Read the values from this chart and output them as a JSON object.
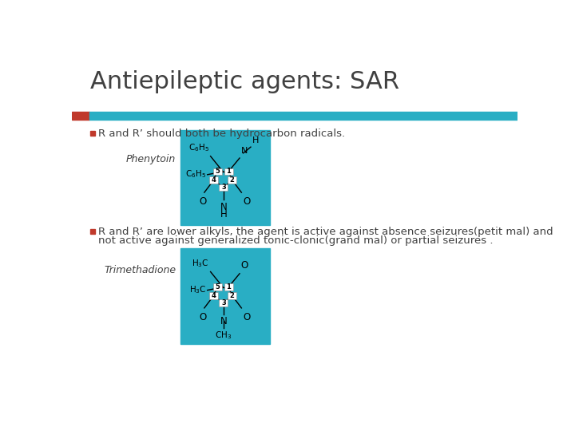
{
  "title": "Antiepileptic agents: SAR",
  "title_color": "#404040",
  "title_fontsize": 22,
  "bg_color": "#ffffff",
  "bar_red_color": "#c0392b",
  "bar_teal_color": "#29aec4",
  "bullet1_text": "R and R’ should both be hydrocarbon radicals.",
  "bullet2_line1": "R and R’ are lower alkyls, the agent is active against absence seizures(petit mal) and",
  "bullet2_line2": "not active against generalized tonic-clonic(grand mal) or partial seizures .",
  "phenytoin_label": "Phenytoin",
  "trimethadione_label": "Trimethadione",
  "bullet_color": "#c0392b",
  "text_color": "#404040",
  "body_fontsize": 9.5,
  "teal_box_color": "#29aec4",
  "white_box_color": "#ffffff",
  "black_color": "#000000",
  "label_fontsize": 9
}
